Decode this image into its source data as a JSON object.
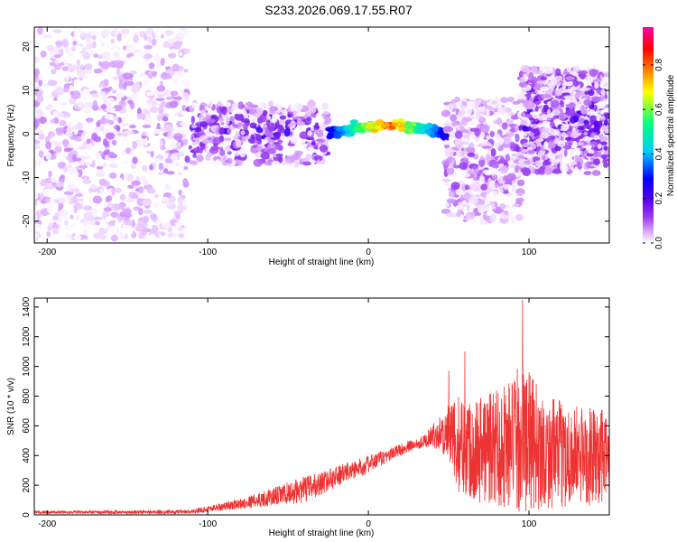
{
  "title": "S233.2026.069.17.55.R07",
  "chart_data": [
    {
      "type": "heatmap",
      "xlabel": "Height of straight line (km)",
      "ylabel": "Frequency (Hz)",
      "xlim": [
        -208,
        150
      ],
      "ylim": [
        -25,
        24.5
      ],
      "xticks": [
        -200,
        -100,
        0,
        100
      ],
      "yticks": [
        -20,
        -10,
        0,
        10,
        20
      ],
      "colorbar": {
        "label": "Normalized spectral amplitude",
        "range": [
          0,
          0.97
        ],
        "ticks": [
          0.0,
          0.2,
          0.4,
          0.6,
          0.8
        ],
        "tick_labels": [
          "0.0",
          "0.2",
          "0.4",
          "0.6",
          "0.8"
        ],
        "colors": [
          "#ffffff",
          "#ddaaff",
          "#9b3cf0",
          "#5a00e8",
          "#0000ff",
          "#00c8ff",
          "#00ff80",
          "#ffff00",
          "#ff8000",
          "#ff0000",
          "#ff00aa"
        ]
      },
      "regions": [
        {
          "x": [
            -208,
            -113
          ],
          "freq_center": 0,
          "freq_spread": 24,
          "density": "high",
          "amplitude_max": 0.1
        },
        {
          "x": [
            -113,
            -25
          ],
          "freq_center": 0,
          "freq_spread": 7,
          "density": "medium",
          "amplitude_max": 0.25
        },
        {
          "x": [
            -25,
            48
          ],
          "freq_center": 2,
          "freq_spread": 1.5,
          "density": "ridge",
          "amplitude_max": 0.9
        },
        {
          "x": [
            48,
            95
          ],
          "freq_center": -6,
          "freq_spread": 14,
          "density": "medium",
          "amplitude_max": 0.15
        },
        {
          "x": [
            95,
            150
          ],
          "freq_center": 3,
          "freq_spread": 12,
          "density": "high",
          "amplitude_max": 0.25
        }
      ]
    },
    {
      "type": "line",
      "xlabel": "Height of straight line (km)",
      "ylabel": "SNR (10 * v/v)",
      "xlim": [
        -208,
        150
      ],
      "ylim": [
        0,
        1460
      ],
      "xticks": [
        -200,
        -100,
        0,
        100
      ],
      "yticks": [
        0,
        200,
        400,
        600,
        800,
        1000,
        1200,
        1400
      ],
      "series": [
        {
          "name": "SNR",
          "color": "#ee3333",
          "envelope": {
            "x": [
              -208,
              -150,
              -110,
              -100,
              -80,
              -60,
              -40,
              -30,
              -20,
              0,
              20,
              35,
              45,
              55,
              70,
              90,
              96,
              110,
              130,
              150
            ],
            "center": [
              18,
              18,
              20,
              40,
              75,
              120,
              170,
              210,
              260,
              340,
              440,
              500,
              560,
              480,
              450,
              480,
              520,
              420,
              400,
              380
            ],
            "amplitude": [
              10,
              12,
              15,
              22,
              35,
              60,
              90,
              80,
              70,
              60,
              40,
              40,
              120,
              320,
              380,
              460,
              520,
              380,
              340,
              320
            ]
          },
          "peaks": [
            {
              "x": 96,
              "y": 1450
            },
            {
              "x": 60,
              "y": 1100
            },
            {
              "x": 50,
              "y": 970
            }
          ]
        }
      ]
    }
  ]
}
